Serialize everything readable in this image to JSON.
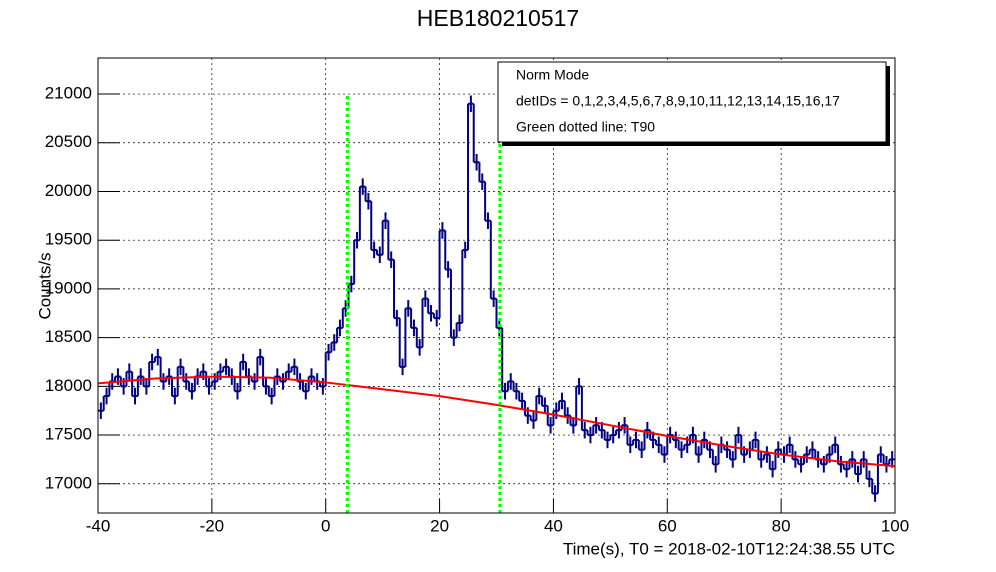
{
  "chart_data": {
    "type": "histogram",
    "title": "HEB180210517",
    "x_label": "Time(s), T0 = 2018-02-10T12:24:38.55 UTC",
    "y_label": "Counts/s",
    "xlim": [
      -40,
      100
    ],
    "ylim": [
      16700,
      21370
    ],
    "xticks": [
      -40,
      -20,
      0,
      20,
      40,
      60,
      80,
      100
    ],
    "yticks": [
      17000,
      17500,
      18000,
      18500,
      19000,
      19500,
      20000,
      20500,
      21000
    ],
    "grid": true,
    "color": "#000080",
    "bins": [
      -40,
      -39,
      -38,
      -37,
      -36,
      -35,
      -34,
      -33,
      -32,
      -31,
      -30,
      -29,
      -28,
      -27,
      -26,
      -25,
      -24,
      -23,
      -22,
      -21,
      -20,
      -19,
      -18,
      -17,
      -16,
      -15,
      -14,
      -13,
      -12,
      -11,
      -10,
      -9,
      -8,
      -7,
      -6,
      -5,
      -4,
      -3,
      -2,
      -1,
      0,
      1,
      2,
      3,
      4,
      5,
      6,
      7,
      8,
      9,
      10,
      11,
      12,
      13,
      14,
      15,
      16,
      17,
      18,
      19,
      20,
      21,
      22,
      23,
      24,
      25,
      26,
      27,
      28,
      29,
      30,
      31,
      32,
      33,
      34,
      35,
      36,
      37,
      38,
      39,
      40,
      41,
      42,
      43,
      44,
      45,
      46,
      47,
      48,
      49,
      50,
      51,
      52,
      53,
      54,
      55,
      56,
      57,
      58,
      59,
      60,
      61,
      62,
      63,
      64,
      65,
      66,
      67,
      68,
      69,
      70,
      71,
      72,
      73,
      74,
      75,
      76,
      77,
      78,
      79,
      80,
      81,
      82,
      83,
      84,
      85,
      86,
      87,
      88,
      89,
      90,
      91,
      92,
      93,
      94,
      95,
      96,
      97,
      98,
      99,
      100
    ],
    "values": [
      17750,
      17900,
      18050,
      18100,
      18000,
      18150,
      17900,
      18100,
      18000,
      18250,
      18300,
      18050,
      18100,
      17900,
      18200,
      18050,
      17950,
      18100,
      18150,
      18000,
      18050,
      18150,
      18200,
      18100,
      17950,
      18250,
      18100,
      18050,
      18300,
      18000,
      17900,
      18100,
      18050,
      18150,
      18200,
      18050,
      17950,
      18100,
      18050,
      18000,
      18350,
      18450,
      18600,
      18800,
      19050,
      19500,
      20050,
      19900,
      19400,
      19350,
      19700,
      19300,
      18700,
      18200,
      18800,
      18600,
      18400,
      18900,
      18750,
      18700,
      19600,
      19200,
      18500,
      18650,
      19400,
      20900,
      20300,
      20100,
      19700,
      18900,
      18600,
      17950,
      18050,
      17950,
      17850,
      17700,
      17650,
      17900,
      17800,
      17600,
      17750,
      17850,
      17700,
      17600,
      18000,
      17550,
      17500,
      17600,
      17550,
      17450,
      17500,
      17550,
      17600,
      17400,
      17450,
      17350,
      17550,
      17450,
      17400,
      17300,
      17500,
      17450,
      17350,
      17400,
      17500,
      17300,
      17450,
      17350,
      17200,
      17400,
      17350,
      17250,
      17500,
      17300,
      17350,
      17450,
      17250,
      17300,
      17150,
      17350,
      17300,
      17400,
      17250,
      17200,
      17300,
      17350,
      17250,
      17200,
      17300,
      17400,
      17200,
      17150,
      17250,
      17100,
      17250,
      17050,
      16900,
      17300,
      17200,
      17250
    ],
    "errors": [
      85,
      85,
      85,
      85,
      85,
      85,
      85,
      85,
      85,
      85,
      85,
      85,
      85,
      85,
      85,
      85,
      85,
      85,
      85,
      85,
      85,
      85,
      85,
      85,
      85,
      85,
      85,
      85,
      85,
      85,
      85,
      85,
      85,
      85,
      85,
      85,
      85,
      85,
      85,
      85,
      85,
      85,
      85,
      85,
      85,
      85,
      85,
      85,
      85,
      85,
      85,
      85,
      85,
      85,
      85,
      85,
      85,
      85,
      85,
      85,
      85,
      85,
      85,
      85,
      85,
      85,
      85,
      85,
      85,
      85,
      85,
      85,
      85,
      85,
      85,
      85,
      85,
      85,
      85,
      85,
      85,
      85,
      85,
      85,
      85,
      85,
      85,
      85,
      85,
      85,
      85,
      85,
      85,
      85,
      85,
      85,
      85,
      85,
      85,
      85,
      85,
      85,
      85,
      85,
      85,
      85,
      85,
      85,
      85,
      85,
      85,
      85,
      85,
      85,
      85,
      85,
      85,
      85,
      85,
      85,
      85,
      85,
      85,
      85,
      85,
      85,
      85,
      85,
      85,
      85,
      85,
      85,
      85,
      85,
      85,
      85,
      85,
      85,
      85,
      85
    ],
    "fit": {
      "color": "#ff0000",
      "x": [
        -40,
        -30,
        -20,
        -10,
        0,
        10,
        20,
        30,
        40,
        50,
        60,
        70,
        80,
        90,
        100
      ],
      "values": [
        18030,
        18080,
        18100,
        18090,
        18040,
        17970,
        17900,
        17810,
        17710,
        17600,
        17490,
        17390,
        17300,
        17230,
        17180
      ]
    },
    "t90": {
      "color": "#00ff00",
      "x": [
        3.8,
        30.6
      ],
      "top": 21000
    },
    "legend": [
      "Norm Mode",
      "detIDs = 0,1,2,3,4,5,6,7,8,9,10,11,12,13,14,15,16,17",
      "Green dotted line: T90"
    ]
  }
}
